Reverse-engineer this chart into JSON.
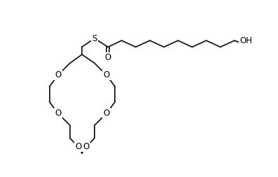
{
  "background_color": "#ffffff",
  "line_color": "#1a1a1a",
  "line_width": 1.3,
  "font_size": 8.5,
  "figsize": [
    3.97,
    2.54
  ],
  "dpi": 100,
  "xlim": [
    0,
    397
  ],
  "ylim": [
    0,
    254
  ]
}
